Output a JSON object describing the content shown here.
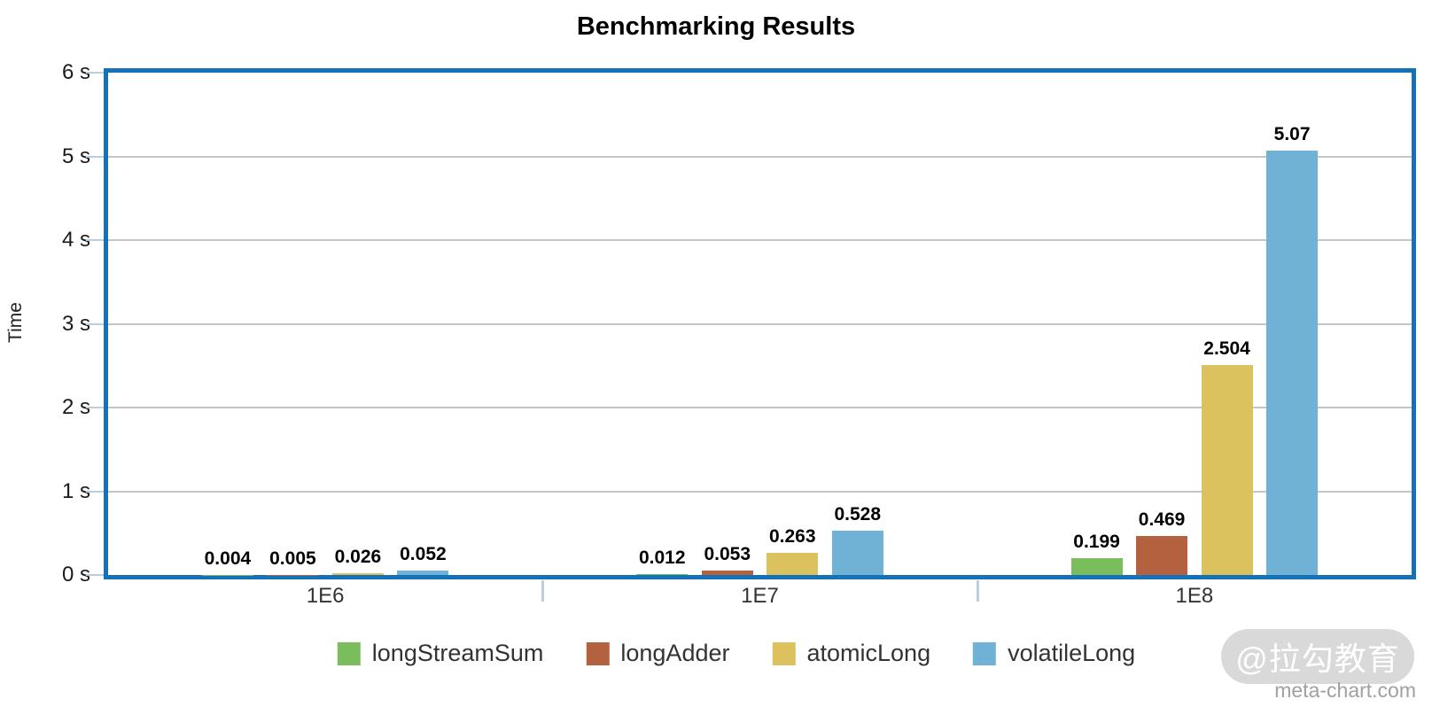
{
  "title": "Benchmarking Results",
  "chart_data": {
    "type": "bar",
    "title": "Benchmarking Results",
    "categories": [
      "1E6",
      "1E7",
      "1E8"
    ],
    "series": [
      {
        "name": "longStreamSum",
        "color": "#7abd5c",
        "values": [
          0.004,
          0.012,
          0.199
        ]
      },
      {
        "name": "longAdder",
        "color": "#b4613f",
        "values": [
          0.005,
          0.053,
          0.469
        ]
      },
      {
        "name": "atomicLong",
        "color": "#dcc25f",
        "values": [
          0.026,
          0.263,
          2.504
        ]
      },
      {
        "name": "volatileLong",
        "color": "#6fb2d6",
        "values": [
          0.052,
          0.528,
          5.07
        ]
      }
    ],
    "value_labels": [
      "0.004",
      "0.005",
      "0.026",
      "0.052",
      "0.012",
      "0.053",
      "0.263",
      "0.528",
      "0.199",
      "0.469",
      "2.504",
      "5.07"
    ],
    "xlabel": "",
    "ylabel": "Time",
    "ylim": [
      0,
      6
    ],
    "y_tick_labels": [
      "0 s",
      "1 s",
      "2 s",
      "3 s",
      "4 s",
      "5 s",
      "6 s"
    ],
    "grid": true,
    "legend_position": "bottom"
  },
  "colors": {
    "axis_border": "#1572b8",
    "gridline": "#c5c5c5",
    "tick_mark": "#b8cfe2",
    "value_label": "#000000",
    "watermark_pill": "#d9d9d9"
  },
  "watermark": {
    "badge": "@拉勾教育",
    "site": "meta-chart.com"
  }
}
